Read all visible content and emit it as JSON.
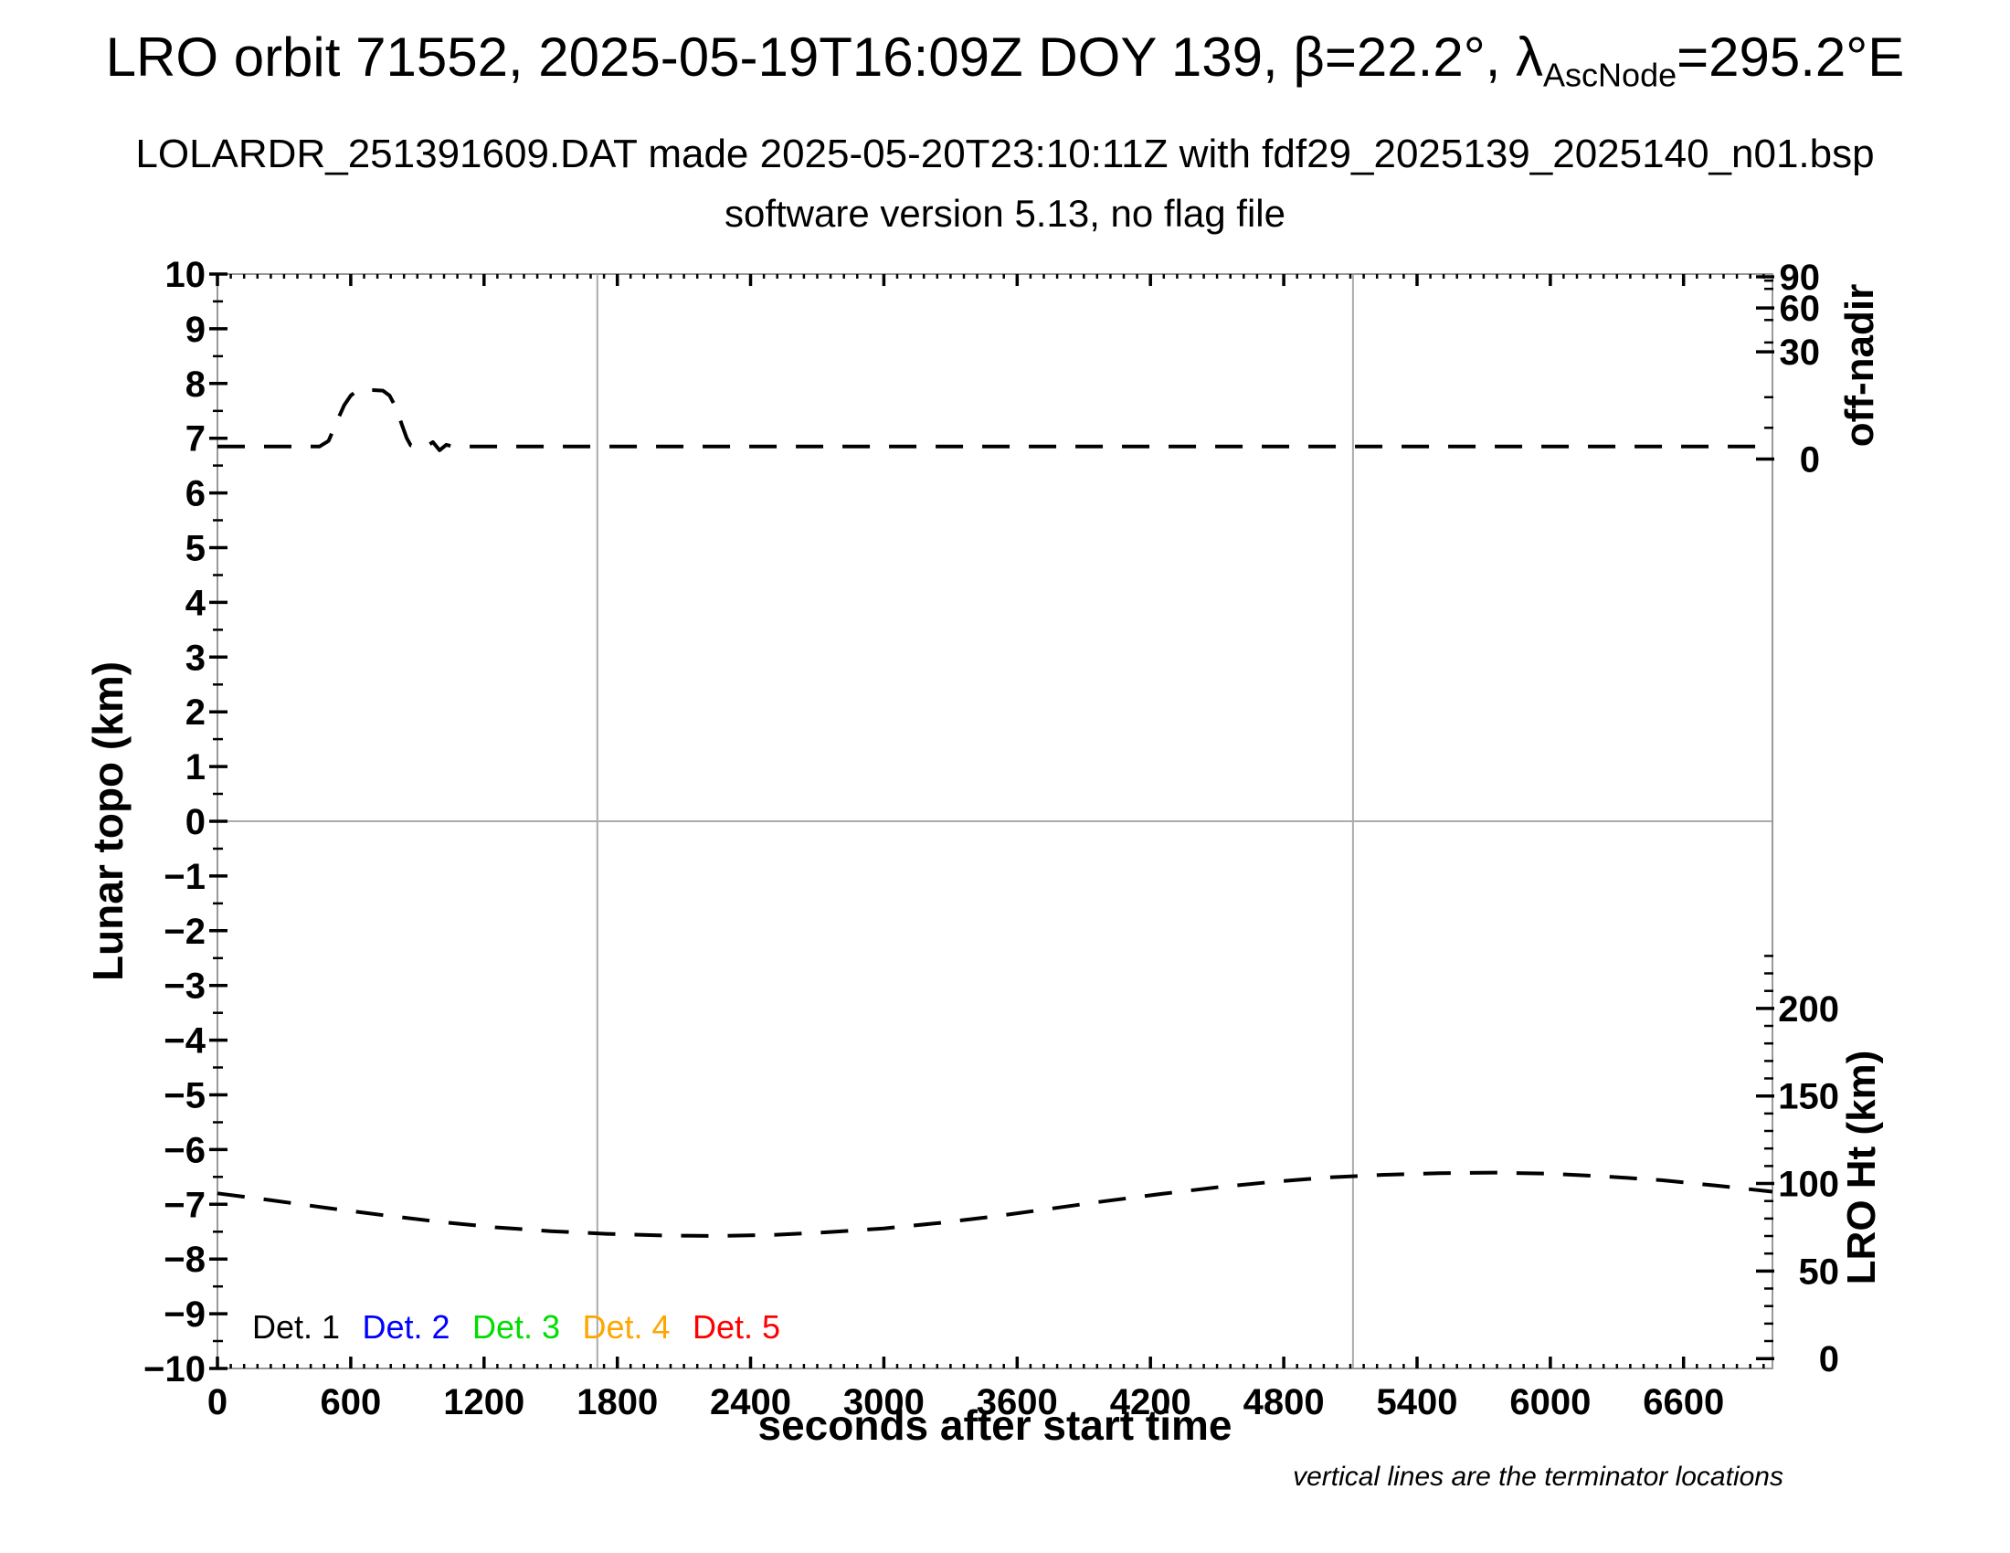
{
  "chart_data": {
    "type": "line",
    "title": "LRO orbit 71552, 2025-05-19T16:09Z DOY 139, β=22.2°, λAscNode=295.2°E",
    "title_parts": {
      "prefix": "LRO orbit 71552, 2025-05-19T16:09Z DOY 139, β=22.2°, λ",
      "subscript": "AscNode",
      "suffix": "=295.2°E"
    },
    "subtitle1": "LOLARDR_251391609.DAT made 2025-05-20T23:10:11Z with fdf29_2025139_2025140_n01.bsp",
    "subtitle2": "software version 5.13, no flag file",
    "xlabel": "seconds after start time",
    "ylabel_left": "Lunar topo (km)",
    "ylabel_right_top": "off-nadir",
    "ylabel_right_bottom": "LRO Ht (km)",
    "annotation": "vertical lines are the terminator locations",
    "xlim": [
      0,
      7000
    ],
    "ylim_left": [
      -10,
      10
    ],
    "grid_on": false,
    "zero_line_topo": 0,
    "terminator_lines_s": [
      1710,
      5112
    ],
    "x_ticks": {
      "values": [
        0,
        600,
        1200,
        1800,
        2400,
        3000,
        3600,
        4200,
        4800,
        5400,
        6000,
        6600
      ],
      "labels": [
        "0",
        "600",
        "1200",
        "1800",
        "2400",
        "3000",
        "3600",
        "4200",
        "4800",
        "5400",
        "6000",
        "6600"
      ],
      "minor_step": 60
    },
    "y_left_ticks": {
      "values": [
        10,
        9,
        8,
        7,
        6,
        5,
        4,
        3,
        2,
        1,
        0,
        -1,
        -2,
        -3,
        -4,
        -5,
        -6,
        -7,
        -8,
        -9,
        -10
      ],
      "labels": [
        "10",
        "9",
        "8",
        "7",
        "6",
        "5",
        "4",
        "3",
        "2",
        "1",
        "0",
        "−1",
        "−2",
        "−3",
        "−4",
        "−5",
        "−6",
        "−7",
        "−8",
        "−9",
        "−10"
      ],
      "minor_step": 0.5
    },
    "right_axis_off_nadir": {
      "title": "off-nadir",
      "labels": [
        "90",
        "60",
        "30",
        "0"
      ],
      "label_topo": [
        9.95,
        9.38,
        8.58,
        6.62
      ],
      "minor_topo": [
        9.88,
        9.73,
        9.16,
        8.75,
        7.75,
        7.19
      ],
      "scale_note": "nonlinear (sine-like) degree scale sharing the left-axis pixels"
    },
    "right_axis_lro_ht": {
      "title": "LRO Ht (km)",
      "labels": [
        "200",
        "150",
        "100",
        "50",
        "0"
      ],
      "label_topo": [
        -3.42,
        -5.02,
        -6.62,
        -8.22,
        -9.82
      ],
      "minor_topo": [
        -9.5,
        -9.18,
        -8.86,
        -8.54,
        -7.9,
        -7.58,
        -7.26,
        -6.94,
        -6.3,
        -5.98,
        -5.66,
        -5.34,
        -4.7,
        -4.38,
        -4.06,
        -3.74,
        -3.1,
        -2.78,
        -2.46
      ],
      "scale_note": "50 km per major division, 0 km near plot bottom"
    },
    "series": [
      {
        "name": "spacecraft off-nadir angle",
        "axis": "right_top",
        "line": "dashed",
        "color": "#000000",
        "units_note": "points given in left-axis (plot) units; flat portion ≈2° off-nadir, slew peak ≈22° between t≈500–860 s",
        "points": [
          [
            0,
            6.85
          ],
          [
            200,
            6.85
          ],
          [
            350,
            6.85
          ],
          [
            460,
            6.85
          ],
          [
            500,
            6.95
          ],
          [
            535,
            7.28
          ],
          [
            570,
            7.6
          ],
          [
            600,
            7.78
          ],
          [
            625,
            7.86
          ],
          [
            650,
            7.88
          ],
          [
            700,
            7.88
          ],
          [
            745,
            7.87
          ],
          [
            775,
            7.78
          ],
          [
            805,
            7.55
          ],
          [
            830,
            7.25
          ],
          [
            852,
            7.0
          ],
          [
            870,
            6.87
          ],
          [
            900,
            6.85
          ],
          [
            940,
            6.85
          ],
          [
            970,
            6.93
          ],
          [
            1000,
            6.78
          ],
          [
            1030,
            6.88
          ],
          [
            1060,
            6.85
          ],
          [
            1300,
            6.85
          ],
          [
            2400,
            6.85
          ],
          [
            3600,
            6.85
          ],
          [
            4800,
            6.85
          ],
          [
            6000,
            6.85
          ],
          [
            7000,
            6.85
          ]
        ]
      },
      {
        "name": "LRO height above surface",
        "axis": "right_bottom",
        "line": "dashed",
        "color": "#000000",
        "units_note": "points given in left-axis (plot) units; ≈94 km at t=0, minimum ≈70 km near t≈2100 s, maximum ≈106 km near t≈5600 s, ≈95 km at end",
        "points": [
          [
            0,
            -6.8
          ],
          [
            250,
            -6.93
          ],
          [
            500,
            -7.07
          ],
          [
            750,
            -7.2
          ],
          [
            1000,
            -7.32
          ],
          [
            1250,
            -7.42
          ],
          [
            1500,
            -7.49
          ],
          [
            1750,
            -7.54
          ],
          [
            2000,
            -7.57
          ],
          [
            2250,
            -7.58
          ],
          [
            2500,
            -7.56
          ],
          [
            2750,
            -7.51
          ],
          [
            3000,
            -7.44
          ],
          [
            3250,
            -7.34
          ],
          [
            3500,
            -7.22
          ],
          [
            3750,
            -7.08
          ],
          [
            4000,
            -6.94
          ],
          [
            4250,
            -6.81
          ],
          [
            4500,
            -6.69
          ],
          [
            4750,
            -6.59
          ],
          [
            5000,
            -6.51
          ],
          [
            5250,
            -6.46
          ],
          [
            5500,
            -6.43
          ],
          [
            5750,
            -6.42
          ],
          [
            6000,
            -6.44
          ],
          [
            6250,
            -6.49
          ],
          [
            6500,
            -6.56
          ],
          [
            6750,
            -6.66
          ],
          [
            7000,
            -6.77
          ]
        ]
      }
    ],
    "legend": {
      "position": "inside bottom-left",
      "items": [
        {
          "label": "Det. 1",
          "color": "#000000"
        },
        {
          "label": "Det. 2",
          "color": "#0000ff"
        },
        {
          "label": "Det. 3",
          "color": "#00dd00"
        },
        {
          "label": "Det. 4",
          "color": "#ffa500"
        },
        {
          "label": "Det. 5",
          "color": "#ff0000"
        }
      ]
    },
    "frame_color": "#999999",
    "guide_line_color": "#ababab"
  }
}
